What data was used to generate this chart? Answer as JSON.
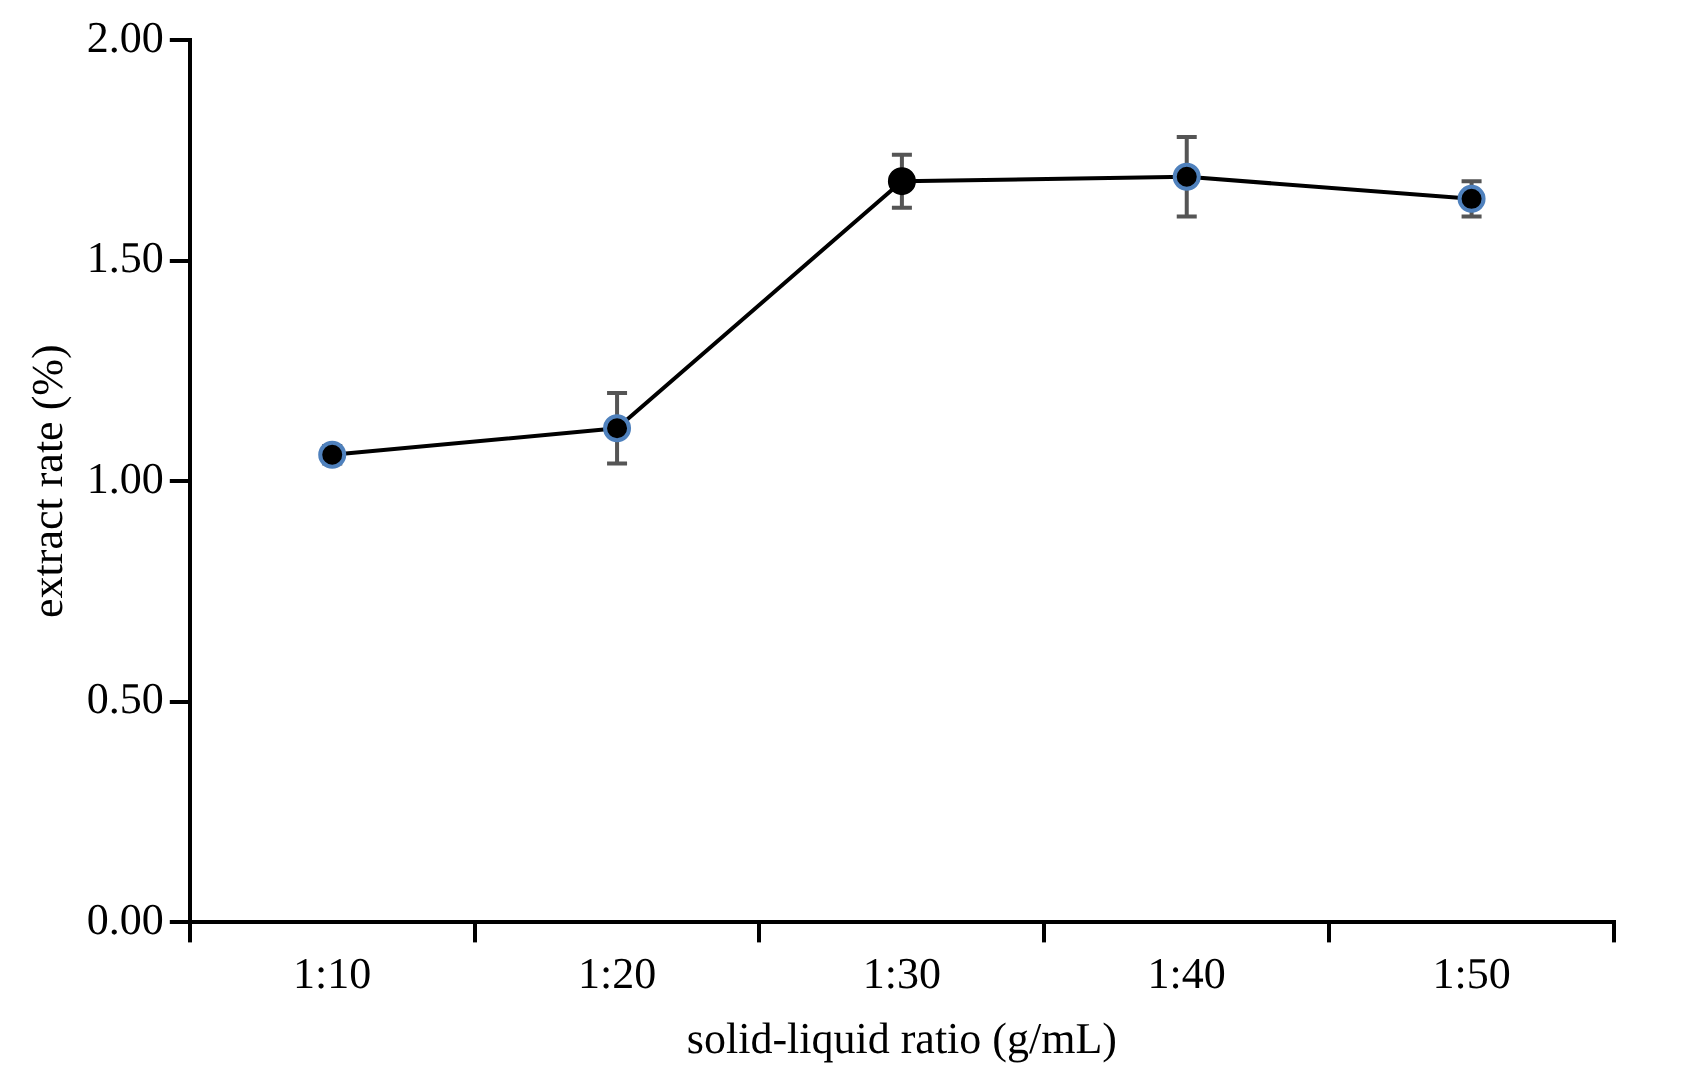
{
  "chart_data": {
    "type": "line",
    "xlabel": "solid-liquid ratio (g/mL)",
    "ylabel": "extract rate (%)",
    "categories": [
      "1:10",
      "1:20",
      "1:30",
      "1:40",
      "1:50"
    ],
    "series": [
      {
        "color": "#000000",
        "colors": [
          "#4f81bd",
          "#4f81bd",
          "#000000",
          "#4f81bd",
          "#4f81bd"
        ],
        "values": [
          1.06,
          1.12,
          1.68,
          1.69,
          1.64
        ],
        "errors": [
          0.02,
          0.08,
          0.06,
          0.09,
          0.04
        ]
      }
    ],
    "ylim": [
      0,
      2
    ],
    "yticks": [
      {
        "value": 0,
        "label": "0.00"
      },
      {
        "value": 0.5,
        "label": "0.50"
      },
      {
        "value": 1,
        "label": "1.00"
      },
      {
        "value": 1.5,
        "label": "1.50"
      },
      {
        "value": 2,
        "label": "2.00"
      }
    ],
    "grid": false,
    "legend": false,
    "marker": "circle",
    "line_style": "solid"
  }
}
